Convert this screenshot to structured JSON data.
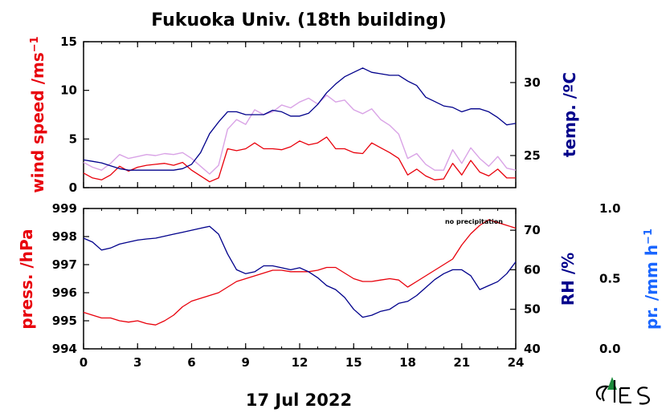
{
  "chart_data": [
    {
      "type": "line",
      "panel": "top",
      "title": "Fukuoka Univ. (18th building)",
      "xlabel": "17 Jul 2022",
      "xlim": [
        0,
        24
      ],
      "xticks": [
        "0",
        "3",
        "6",
        "9",
        "12",
        "15",
        "18",
        "21",
        "24"
      ],
      "left_axis": {
        "label": "wind speed /ms",
        "label_sup": "−1",
        "ylim": [
          0,
          15
        ],
        "ticks": [
          "0",
          "5",
          "10",
          "15"
        ],
        "color": "#e8000b"
      },
      "right_axis": {
        "label": "temp. /ºC",
        "ylim": [
          22.8,
          32.8
        ],
        "ticks": [
          "25",
          "30"
        ],
        "color": "#00008b"
      },
      "series": [
        {
          "axis": "left",
          "color": "#e8000b",
          "x": [
            0,
            0.5,
            1,
            1.5,
            2,
            2.5,
            3,
            3.5,
            4,
            4.5,
            5,
            5.5,
            6,
            6.5,
            7,
            7.5,
            8,
            8.5,
            9,
            9.5,
            10,
            10.5,
            11,
            11.5,
            12,
            12.5,
            13,
            13.5,
            14,
            14.5,
            15,
            15.5,
            16,
            16.5,
            17,
            17.5,
            18,
            18.5,
            19,
            19.5,
            20,
            20.5,
            21,
            21.5,
            22,
            22.5,
            23,
            23.5,
            24
          ],
          "values": [
            1.5,
            1.0,
            0.8,
            1.3,
            2.2,
            1.7,
            2.1,
            2.3,
            2.4,
            2.5,
            2.3,
            2.6,
            1.8,
            1.2,
            0.6,
            1.0,
            4.0,
            3.8,
            4.0,
            4.6,
            4.0,
            4.0,
            3.9,
            4.2,
            4.8,
            4.4,
            4.6,
            5.2,
            4.0,
            4.0,
            3.6,
            3.5,
            4.6,
            4.1,
            3.6,
            3.0,
            1.3,
            1.9,
            1.2,
            0.8,
            0.9,
            2.5,
            1.3,
            2.8,
            1.6,
            1.2,
            1.9,
            1.0,
            1.0
          ]
        },
        {
          "axis": "left",
          "color": "#d9a3e6",
          "x": [
            0,
            0.5,
            1,
            1.5,
            2,
            2.5,
            3,
            3.5,
            4,
            4.5,
            5,
            5.5,
            6,
            6.5,
            7,
            7.5,
            8,
            8.5,
            9,
            9.5,
            10,
            10.5,
            11,
            11.5,
            12,
            12.5,
            13,
            13.5,
            14,
            14.5,
            15,
            15.5,
            16,
            16.5,
            17,
            17.5,
            18,
            18.5,
            19,
            19.5,
            20,
            20.5,
            21,
            21.5,
            22,
            22.5,
            23,
            23.5,
            24
          ],
          "values": [
            2.6,
            2.1,
            1.8,
            2.5,
            3.4,
            3.0,
            3.2,
            3.4,
            3.3,
            3.5,
            3.4,
            3.6,
            3.0,
            2.2,
            1.4,
            2.3,
            6.0,
            7.0,
            6.5,
            8.0,
            7.5,
            7.8,
            8.5,
            8.2,
            8.8,
            9.2,
            8.6,
            9.5,
            8.8,
            9.0,
            8.0,
            7.6,
            8.1,
            7.0,
            6.4,
            5.5,
            3.0,
            3.5,
            2.4,
            1.8,
            1.8,
            3.9,
            2.5,
            4.1,
            3.0,
            2.2,
            3.2,
            2.0,
            1.8
          ]
        },
        {
          "axis": "right",
          "color": "#00008b",
          "x": [
            0,
            0.5,
            1,
            1.5,
            2,
            2.5,
            3,
            3.5,
            4,
            4.5,
            5,
            5.5,
            6,
            6.5,
            7,
            7.5,
            8,
            8.5,
            9,
            9.5,
            10,
            10.5,
            11,
            11.5,
            12,
            12.5,
            13,
            13.5,
            14,
            14.5,
            15,
            15.5,
            16,
            16.5,
            17,
            17.5,
            18,
            18.5,
            19,
            19.5,
            20,
            20.5,
            21,
            21.5,
            22,
            22.5,
            23,
            23.5,
            24
          ],
          "values": [
            24.7,
            24.6,
            24.5,
            24.3,
            24.1,
            24.0,
            24.0,
            24.0,
            24.0,
            24.0,
            24.0,
            24.1,
            24.4,
            25.2,
            26.5,
            27.3,
            28.0,
            28.0,
            27.8,
            27.8,
            27.8,
            28.1,
            28.0,
            27.7,
            27.7,
            27.9,
            28.5,
            29.3,
            29.9,
            30.4,
            30.7,
            31.0,
            30.7,
            30.6,
            30.5,
            30.5,
            30.1,
            29.8,
            29.0,
            28.7,
            28.4,
            28.3,
            28.0,
            28.2,
            28.2,
            28.0,
            27.6,
            27.1,
            27.2
          ]
        }
      ]
    },
    {
      "type": "line",
      "panel": "bottom",
      "xlabel": "17 Jul 2022",
      "xlim": [
        0,
        24
      ],
      "xticks": [
        "0",
        "3",
        "6",
        "9",
        "12",
        "15",
        "18",
        "21",
        "24"
      ],
      "left_axis": {
        "label": "press. /hPa",
        "ylim": [
          994,
          999
        ],
        "ticks": [
          "994",
          "995",
          "996",
          "997",
          "998",
          "999"
        ],
        "color": "#e8000b"
      },
      "right_axis": {
        "label": "RH /%",
        "ylim": [
          40,
          75.5
        ],
        "ticks": [
          "40",
          "50",
          "60",
          "70"
        ],
        "color": "#00008b"
      },
      "far_right_axis": {
        "label": "pr. /mm h",
        "label_sup": "−1",
        "ylim": [
          0,
          1
        ],
        "ticks": [
          "0.0",
          "0.5",
          "1.0"
        ],
        "color": "#1a66ff"
      },
      "annotation": "no precipitation",
      "series": [
        {
          "axis": "left",
          "color": "#e8000b",
          "x": [
            0,
            0.5,
            1,
            1.5,
            2,
            2.5,
            3,
            3.5,
            4,
            4.5,
            5,
            5.5,
            6,
            6.5,
            7,
            7.5,
            8,
            8.5,
            9,
            9.5,
            10,
            10.5,
            11,
            11.5,
            12,
            12.5,
            13,
            13.5,
            14,
            14.5,
            15,
            15.5,
            16,
            16.5,
            17,
            17.5,
            18,
            18.5,
            19,
            19.5,
            20,
            20.5,
            21,
            21.5,
            22,
            22.5,
            23,
            23.5,
            24
          ],
          "values": [
            995.3,
            995.2,
            995.1,
            995.1,
            995.0,
            994.95,
            995.0,
            994.9,
            994.85,
            995.0,
            995.2,
            995.5,
            995.7,
            995.8,
            995.9,
            996.0,
            996.2,
            996.4,
            996.5,
            996.6,
            996.7,
            996.8,
            996.8,
            996.75,
            996.75,
            996.75,
            996.8,
            996.9,
            996.9,
            996.7,
            996.5,
            996.4,
            996.4,
            996.45,
            996.5,
            996.45,
            996.2,
            996.4,
            996.6,
            996.8,
            997.0,
            997.2,
            997.7,
            998.1,
            998.4,
            998.6,
            998.5,
            998.4,
            998.3
          ]
        },
        {
          "axis": "right",
          "color": "#00008b",
          "x": [
            0,
            0.5,
            1,
            1.5,
            2,
            2.5,
            3,
            3.5,
            4,
            4.5,
            5,
            5.5,
            6,
            6.5,
            7,
            7.5,
            8,
            8.5,
            9,
            9.5,
            10,
            10.5,
            11,
            11.5,
            12,
            12.5,
            13,
            13.5,
            14,
            14.5,
            15,
            15.5,
            16,
            16.5,
            17,
            17.5,
            18,
            18.5,
            19,
            19.5,
            20,
            20.5,
            21,
            21.5,
            22,
            22.5,
            23,
            23.5,
            24
          ],
          "values": [
            68.0,
            67.0,
            65.0,
            65.5,
            66.5,
            67.0,
            67.5,
            67.8,
            68.0,
            68.5,
            69.0,
            69.5,
            70.0,
            70.5,
            71.0,
            69.0,
            64.0,
            60.0,
            59.0,
            59.5,
            61.0,
            61.0,
            60.5,
            60.0,
            60.5,
            59.5,
            58.0,
            56.0,
            55.0,
            53.0,
            50.0,
            48.0,
            48.5,
            49.5,
            50.0,
            51.5,
            52.0,
            53.5,
            55.5,
            57.5,
            59.0,
            60.0,
            60.0,
            58.5,
            55.0,
            56.0,
            57.0,
            59.0,
            62.0
          ]
        }
      ]
    }
  ]
}
